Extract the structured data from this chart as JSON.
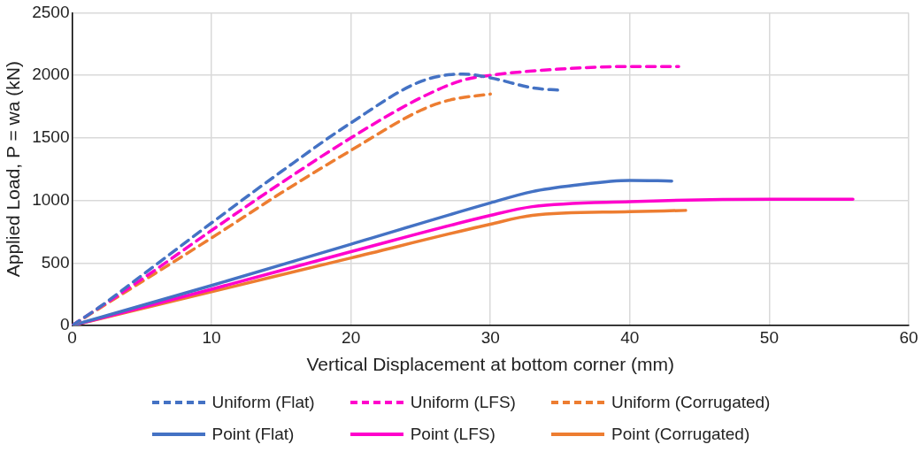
{
  "chart_data": {
    "type": "line",
    "xlabel": "Vertical Displacement at bottom corner (mm)",
    "ylabel": "Applied Load, P = wa (kN)",
    "xlim": [
      0,
      60
    ],
    "xticks": [
      0,
      10,
      20,
      30,
      40,
      50,
      60
    ],
    "ylim": [
      0,
      2500
    ],
    "yticks": [
      0,
      500,
      1000,
      1500,
      2000,
      2500
    ],
    "grid": true,
    "legend": "bottom",
    "marker": "none",
    "series": [
      {
        "name": "Uniform (Flat)",
        "color": "#4472c4",
        "line_style": "dashed",
        "x": [
          0,
          2,
          5,
          10,
          15,
          20,
          25,
          28,
          30,
          33,
          35
        ],
        "values": [
          0,
          150,
          400,
          820,
          1230,
          1620,
          1950,
          2010,
          1980,
          1900,
          1880
        ]
      },
      {
        "name": "Uniform (LFS)",
        "color": "#ff00cc",
        "line_style": "dashed",
        "x": [
          0,
          5,
          10,
          15,
          20,
          25,
          28,
          30,
          35,
          40,
          43.5
        ],
        "values": [
          0,
          370,
          760,
          1140,
          1500,
          1820,
          1960,
          2000,
          2050,
          2070,
          2070
        ]
      },
      {
        "name": "Uniform (Corrugated)",
        "color": "#ed7d31",
        "line_style": "dashed",
        "x": [
          0,
          5,
          10,
          15,
          20,
          25,
          27,
          30
        ],
        "values": [
          0,
          350,
          700,
          1060,
          1400,
          1720,
          1800,
          1850
        ]
      },
      {
        "name": "Point (Flat)",
        "color": "#4472c4",
        "line_style": "solid",
        "x": [
          0,
          10,
          20,
          30,
          33,
          36,
          40,
          43
        ],
        "values": [
          0,
          320,
          650,
          980,
          1070,
          1120,
          1160,
          1155
        ]
      },
      {
        "name": "Point (LFS)",
        "color": "#ff00cc",
        "line_style": "solid",
        "x": [
          0,
          10,
          20,
          30,
          33,
          40,
          50,
          56
        ],
        "values": [
          0,
          290,
          590,
          880,
          950,
          990,
          1010,
          1010
        ]
      },
      {
        "name": "Point (Corrugated)",
        "color": "#ed7d31",
        "line_style": "solid",
        "x": [
          0,
          10,
          20,
          30,
          33,
          40,
          44
        ],
        "values": [
          0,
          270,
          540,
          810,
          880,
          910,
          920
        ]
      }
    ]
  }
}
